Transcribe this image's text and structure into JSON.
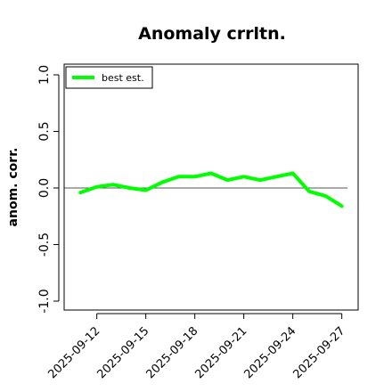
{
  "chart_data": {
    "type": "line",
    "title": "Anomaly crrltn.",
    "xlabel": "",
    "ylabel": "anom. corr.",
    "ylim": [
      -1.0,
      1.0
    ],
    "yticks": [
      "-1.0",
      "-0.5",
      "0.0",
      "0.5",
      "1.0"
    ],
    "ytick_values": [
      -1.0,
      -0.5,
      0.0,
      0.5,
      1.0
    ],
    "x": [
      "2025-09-11",
      "2025-09-12",
      "2025-09-13",
      "2025-09-14",
      "2025-09-15",
      "2025-09-16",
      "2025-09-17",
      "2025-09-18",
      "2025-09-19",
      "2025-09-20",
      "2025-09-21",
      "2025-09-22",
      "2025-09-23",
      "2025-09-24",
      "2025-09-25",
      "2025-09-26",
      "2025-09-27"
    ],
    "xlim": [
      "2025-09-10",
      "2025-09-28"
    ],
    "xticks": [
      "2025-09-12",
      "2025-09-15",
      "2025-09-18",
      "2025-09-21",
      "2025-09-24",
      "2025-09-27"
    ],
    "reference_line": 0.0,
    "grid": false,
    "legend_position": "top-left",
    "series": [
      {
        "name": "best est.",
        "color": "#00ff00",
        "values": [
          -0.04,
          0.01,
          0.03,
          0.0,
          -0.02,
          0.05,
          0.1,
          0.1,
          0.13,
          0.07,
          0.1,
          0.07,
          0.1,
          0.13,
          -0.03,
          -0.07,
          -0.16
        ]
      }
    ]
  }
}
